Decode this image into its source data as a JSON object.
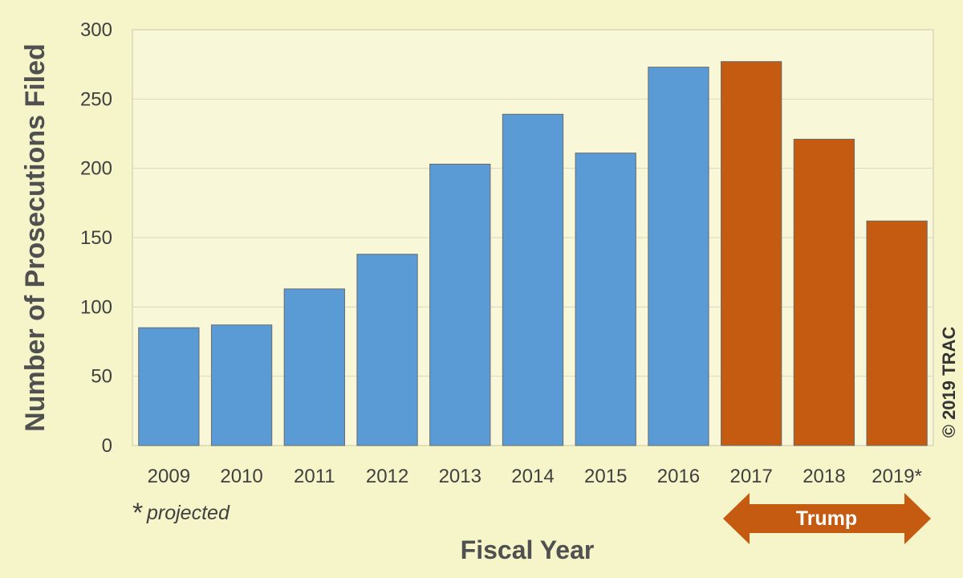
{
  "chart_data": {
    "type": "bar",
    "categories": [
      "2009",
      "2010",
      "2011",
      "2012",
      "2013",
      "2014",
      "2015",
      "2016",
      "2017",
      "2018",
      "2019*"
    ],
    "values": [
      85,
      87,
      113,
      138,
      203,
      239,
      211,
      273,
      277,
      221,
      162
    ],
    "bar_groups": [
      "pre",
      "pre",
      "pre",
      "pre",
      "pre",
      "pre",
      "pre",
      "pre",
      "trump",
      "trump",
      "trump"
    ],
    "ylabel": "Number of Prosecutions Filed",
    "xlabel": "Fiscal Year",
    "ylim": [
      0,
      300
    ],
    "yticks": [
      0,
      50,
      100,
      150,
      200,
      250,
      300
    ],
    "grid": true,
    "footnote_star": "*",
    "footnote_text": "projected",
    "period_label": "Trump",
    "copyright": "© 2019 TRAC",
    "colors": {
      "pre": "#5b9bd5",
      "trump": "#c55a11",
      "background": "#f6f5c9",
      "plot_background": "#f8f8d8",
      "gridline": "#d8d8c4"
    }
  }
}
